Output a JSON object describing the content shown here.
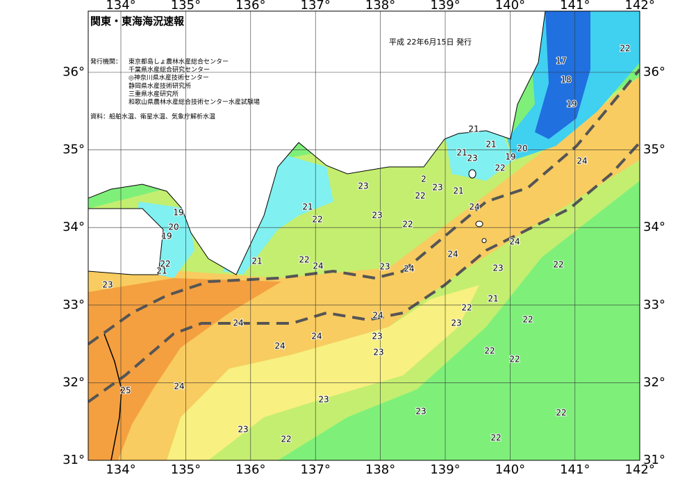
{
  "header": {
    "title": "関東・東海海況速報",
    "date": "平成 22年6月15日 発行"
  },
  "publisher": {
    "label": "発行機関：",
    "agencies": [
      "東京都島しょ農林水産総合センター",
      "千葉県水産総合研究センター",
      "◎神奈川県水産技術センター",
      "静岡県水産技術研究所",
      "三重県水産研究所",
      "和歌山県農林水産総合技術センター水産試験場"
    ]
  },
  "source": "資料：船舶水温、衛星水温、気象庁解析水温",
  "longitude_labels": [
    "134°",
    "135°",
    "136°",
    "137°",
    "138°",
    "139°",
    "140°",
    "141°",
    "142°"
  ],
  "latitude_labels": [
    "36°",
    "35°",
    "34°",
    "33°",
    "32°",
    "31°"
  ],
  "contour_labels": [
    "22",
    "17",
    "18",
    "19",
    "21",
    "21",
    "20",
    "19",
    "21",
    "23",
    "22",
    "24",
    "2",
    "23",
    "21",
    "22",
    "23",
    "24",
    "21",
    "22",
    "23",
    "22",
    "19",
    "20",
    "19",
    "22",
    "21",
    "21",
    "22",
    "24",
    "23",
    "24",
    "24",
    "24",
    "23",
    "22",
    "23",
    "21",
    "22",
    "22",
    "23",
    "24",
    "24",
    "24",
    "23",
    "24",
    "23",
    "22",
    "22",
    "25",
    "24",
    "23",
    "23",
    "22",
    "23",
    "22",
    "22"
  ]
}
